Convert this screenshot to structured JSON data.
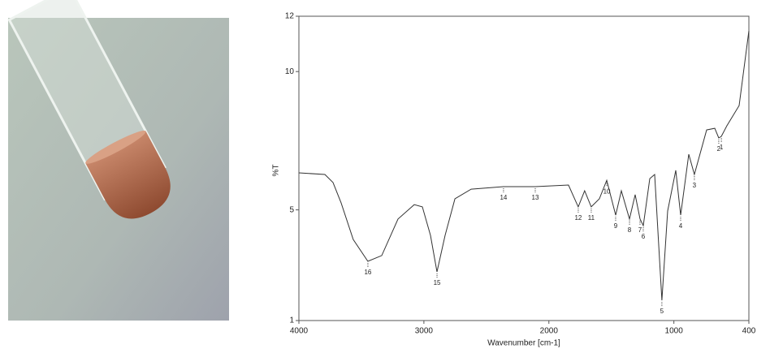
{
  "chart_data": {
    "type": "line",
    "x_label": "Wavenumber [cm-1]",
    "y_label": "%T",
    "xlim": [
      4000,
      400
    ],
    "ylim": [
      1,
      12
    ],
    "xticks": [
      4000,
      3000,
      2000,
      1000,
      400
    ],
    "yticks": [
      1,
      5,
      10,
      12
    ],
    "series": [
      {
        "color": "#333333",
        "x": [
          4000,
          3792,
          3727,
          3662,
          3565,
          3448,
          3337,
          3207,
          3077,
          3012,
          2947,
          2895,
          2830,
          2752,
          2622,
          2363,
          2109,
          1843,
          1765,
          1714,
          1661,
          1596,
          1537,
          1466,
          1420,
          1355,
          1310,
          1271,
          1245,
          1193,
          1154,
          1096,
          1050,
          985,
          946,
          881,
          836,
          738,
          673,
          641,
          620,
          576,
          478,
          400
        ],
        "values": [
          6.34,
          6.28,
          5.99,
          5.25,
          3.93,
          3.14,
          3.35,
          4.67,
          5.19,
          5.11,
          4.08,
          2.76,
          4.08,
          5.4,
          5.75,
          5.84,
          5.84,
          5.9,
          5.11,
          5.69,
          5.11,
          5.4,
          6.07,
          4.81,
          5.69,
          4.67,
          5.55,
          4.67,
          4.43,
          6.13,
          6.28,
          1.73,
          4.96,
          6.43,
          4.81,
          7.01,
          6.28,
          7.89,
          7.95,
          7.6,
          7.66,
          8.04,
          8.77,
          11.47
        ]
      }
    ],
    "annotations": [
      {
        "label": "16",
        "x": 3448,
        "y": 3.14
      },
      {
        "label": "15",
        "x": 2895,
        "y": 2.76
      },
      {
        "label": "14",
        "x": 2363,
        "y": 5.84
      },
      {
        "label": "13",
        "x": 2109,
        "y": 5.84
      },
      {
        "label": "12",
        "x": 1765,
        "y": 5.11
      },
      {
        "label": "11",
        "x": 1661,
        "y": 5.11
      },
      {
        "label": "10",
        "x": 1537,
        "y": 6.07
      },
      {
        "label": "9",
        "x": 1466,
        "y": 4.81
      },
      {
        "label": "8",
        "x": 1355,
        "y": 4.67
      },
      {
        "label": "7",
        "x": 1271,
        "y": 4.67
      },
      {
        "label": "6",
        "x": 1245,
        "y": 4.43
      },
      {
        "label": "5",
        "x": 1096,
        "y": 1.73
      },
      {
        "label": "4",
        "x": 946,
        "y": 4.81
      },
      {
        "label": "3",
        "x": 836,
        "y": 6.28
      },
      {
        "label": "2",
        "x": 641,
        "y": 7.6
      },
      {
        "label": "1",
        "x": 620,
        "y": 7.66
      }
    ]
  }
}
